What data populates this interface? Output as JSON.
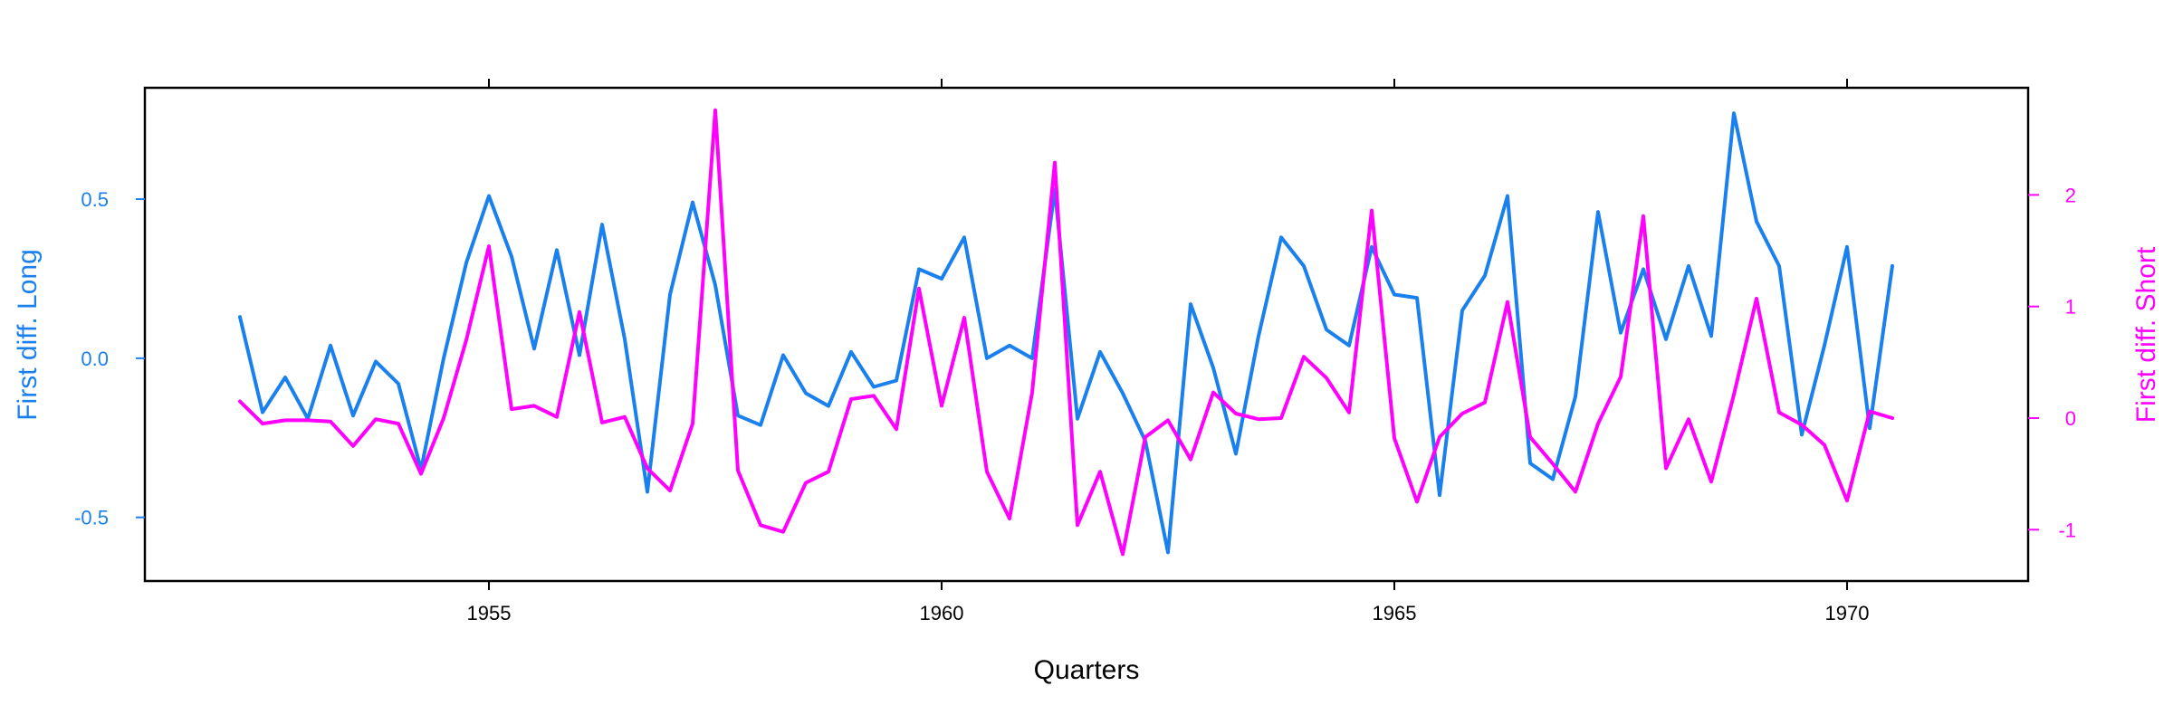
{
  "chart_data": {
    "type": "line",
    "xlabel": "Quarters",
    "ylabel_left": "First diff. Long",
    "ylabel_right": "First diff. Short",
    "x_ticks": [
      1955,
      1960,
      1965,
      1970
    ],
    "x_tick_labels": [
      "1955",
      "1960",
      "1965",
      "1970"
    ],
    "xlim": [
      1951.2,
      1972.0
    ],
    "y_left_ticks": [
      -0.5,
      0.0,
      0.5
    ],
    "y_left_tick_labels": [
      "-0.5",
      "0.0",
      "0.5"
    ],
    "y_left_lim": [
      -0.7,
      0.85
    ],
    "y_right_ticks": [
      -1,
      0,
      1,
      2
    ],
    "y_right_tick_labels": [
      "-1",
      "0",
      "1",
      "2"
    ],
    "y_right_lim": [
      -1.46,
      2.96
    ],
    "grid": false,
    "series": [
      {
        "axis": "left",
        "color": "#1a80ee",
        "x_start": 1952.25,
        "x_step": 0.25,
        "values": [
          0.13,
          -0.17,
          -0.06,
          -0.19,
          0.04,
          -0.18,
          -0.01,
          -0.08,
          -0.35,
          0.0,
          0.3,
          0.51,
          0.32,
          0.03,
          0.34,
          0.01,
          0.42,
          0.06,
          -0.42,
          0.2,
          0.49,
          0.23,
          -0.18,
          -0.21,
          0.01,
          -0.11,
          -0.15,
          0.02,
          -0.09,
          -0.07,
          0.28,
          0.25,
          0.38,
          0.0,
          0.04,
          0.0,
          0.53,
          -0.19,
          0.02,
          -0.11,
          -0.26,
          -0.61,
          0.17,
          -0.03,
          -0.3,
          0.07,
          0.38,
          0.29,
          0.09,
          0.04,
          0.35,
          0.2,
          0.19,
          -0.43,
          0.15,
          0.26,
          0.51,
          -0.33,
          -0.38,
          -0.12,
          0.46,
          0.08,
          0.28,
          0.06,
          0.29,
          0.07,
          0.77,
          0.43,
          0.29,
          -0.24,
          0.04,
          0.35,
          -0.22,
          0.29
        ]
      },
      {
        "axis": "right",
        "color": "#ff00ff",
        "x_start": 1952.25,
        "x_step": 0.25,
        "values": [
          0.15,
          -0.05,
          -0.02,
          -0.02,
          -0.03,
          -0.25,
          -0.01,
          -0.05,
          -0.5,
          0.0,
          0.7,
          1.54,
          0.08,
          0.11,
          0.01,
          0.95,
          -0.04,
          0.01,
          -0.45,
          -0.65,
          -0.05,
          2.76,
          -0.47,
          -0.96,
          -1.02,
          -0.58,
          -0.48,
          0.17,
          0.2,
          -0.1,
          1.16,
          0.11,
          0.9,
          -0.48,
          -0.9,
          0.23,
          2.29,
          -0.96,
          -0.48,
          -1.22,
          -0.17,
          -0.02,
          -0.37,
          0.23,
          0.04,
          -0.01,
          0.0,
          0.55,
          0.36,
          0.05,
          1.86,
          -0.18,
          -0.75,
          -0.17,
          0.04,
          0.14,
          1.04,
          -0.17,
          -0.41,
          -0.66,
          -0.05,
          0.37,
          1.81,
          -0.45,
          -0.01,
          -0.57,
          0.21,
          1.07,
          0.05,
          -0.06,
          -0.24,
          -0.74,
          0.06,
          0.0
        ]
      }
    ]
  }
}
